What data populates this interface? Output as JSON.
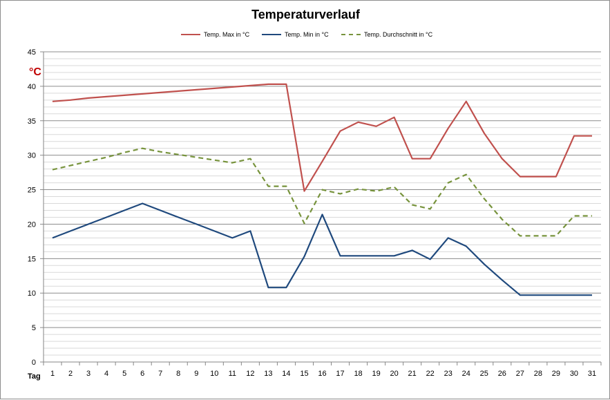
{
  "chart_data": {
    "type": "line",
    "title": "Temperaturverlauf",
    "unit_label": "°C",
    "xlabel": "Tag",
    "categories": [
      "1",
      "2",
      "3",
      "4",
      "5",
      "6",
      "7",
      "8",
      "9",
      "10",
      "11",
      "12",
      "13",
      "14",
      "15",
      "16",
      "17",
      "18",
      "19",
      "20",
      "21",
      "22",
      "23",
      "24",
      "25",
      "26",
      "27",
      "28",
      "29",
      "30",
      "31"
    ],
    "ylim": [
      0,
      45
    ],
    "y_ticks": [
      0,
      5,
      10,
      15,
      20,
      25,
      30,
      35,
      40,
      45
    ],
    "minor_grid_step": 1,
    "grid": true,
    "legend_position": "top",
    "series": [
      {
        "name": "Temp. Max in °C",
        "color": "#c0504d",
        "style": "solid",
        "values": [
          37.8,
          38.0,
          38.3,
          38.5,
          38.7,
          38.9,
          39.1,
          39.3,
          39.5,
          39.7,
          39.9,
          40.1,
          40.3,
          40.3,
          24.8,
          29.1,
          33.5,
          34.8,
          34.2,
          35.5,
          29.5,
          29.5,
          33.9,
          37.8,
          33.2,
          29.5,
          26.9,
          26.9,
          26.9,
          32.8,
          32.8
        ]
      },
      {
        "name": "Temp. Min in °C",
        "color": "#1f497d",
        "style": "solid",
        "values": [
          18.0,
          19.0,
          20.0,
          21.0,
          22.0,
          23.0,
          22.0,
          21.0,
          20.0,
          19.0,
          18.0,
          19.0,
          10.8,
          10.8,
          15.3,
          21.4,
          15.4,
          15.4,
          15.4,
          15.4,
          16.2,
          14.9,
          18.0,
          16.8,
          14.2,
          11.9,
          9.7,
          9.7,
          9.7,
          9.7,
          9.7
        ]
      },
      {
        "name": "Temp. Durchschnitt in °C",
        "color": "#77933c",
        "style": "dashed",
        "values": [
          27.9,
          28.5,
          29.1,
          29.7,
          30.4,
          31.0,
          30.5,
          30.1,
          29.7,
          29.3,
          28.9,
          29.5,
          25.5,
          25.5,
          20.1,
          25.0,
          24.4,
          25.1,
          24.8,
          25.4,
          22.8,
          22.2,
          26.0,
          27.2,
          23.7,
          20.7,
          18.3,
          18.3,
          18.3,
          21.2,
          21.2
        ]
      }
    ]
  }
}
